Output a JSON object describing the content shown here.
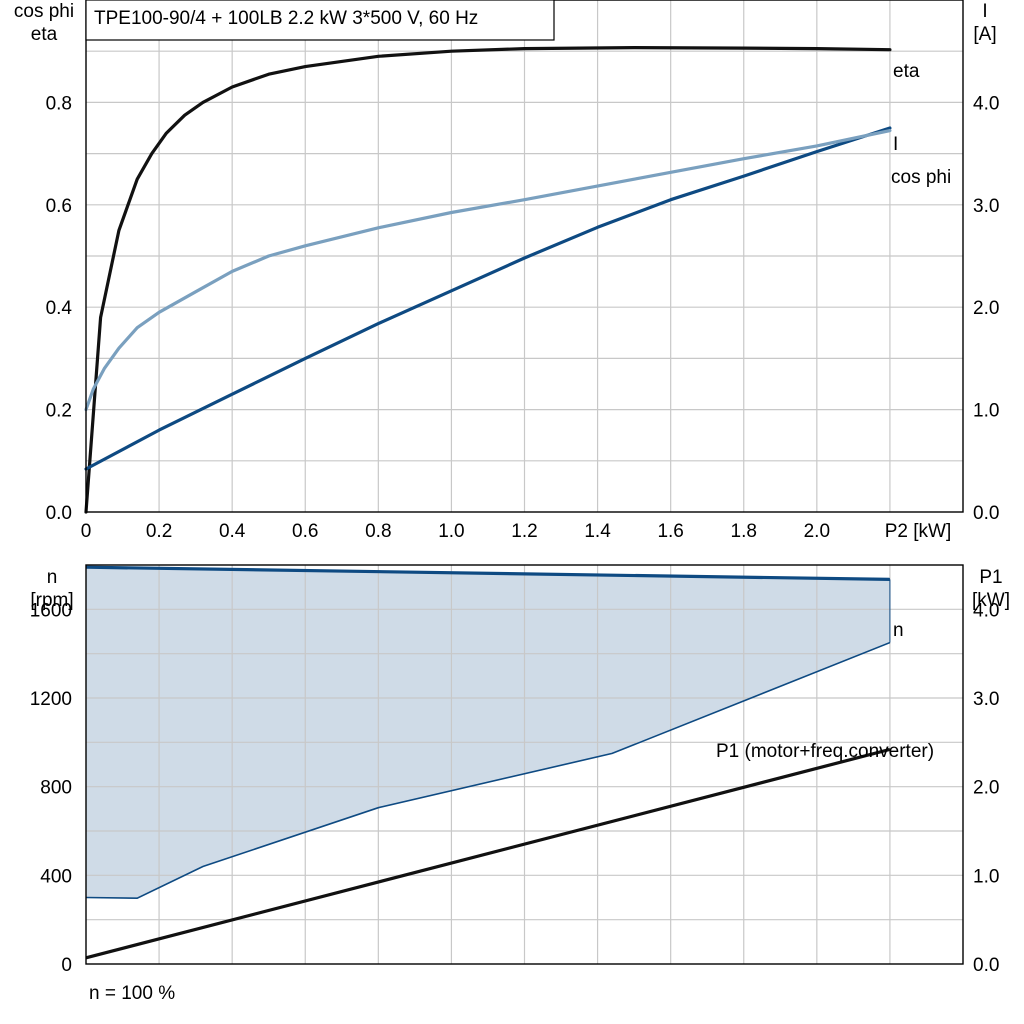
{
  "colors": {
    "eta": "#111111",
    "current": "#0e4a82",
    "cosphi": "#7aa0bf",
    "speed": "#0e4a82",
    "band_fill": "#cfdbe7",
    "band_edge": "#0e4a82",
    "p1": "#111111",
    "grid": "#c8c8c8"
  },
  "chart_data": [
    {
      "type": "line",
      "title": "TPE100-90/4 + 100LB   2.2 kW   3*500 V, 60 Hz",
      "xlabel": "P2 [kW]",
      "ylabel_left": [
        "cos phi",
        "eta"
      ],
      "ylabel_right": [
        "I",
        "[A]"
      ],
      "xlim": [
        0,
        2.4
      ],
      "ylim_left": [
        0,
        1.0
      ],
      "ylim_right": [
        0,
        5.0
      ],
      "grid": true,
      "x_ticks": [
        "0",
        "0.2",
        "0.4",
        "0.6",
        "0.8",
        "1.0",
        "1.2",
        "1.4",
        "1.6",
        "1.8",
        "2.0"
      ],
      "y_ticks_left": [
        "0.0",
        "0.2",
        "0.4",
        "0.6",
        "0.8"
      ],
      "y_ticks_right": [
        "0.0",
        "1.0",
        "2.0",
        "3.0",
        "4.0"
      ],
      "series": [
        {
          "name": "eta",
          "axis": "left",
          "x": [
            0,
            0.04,
            0.09,
            0.14,
            0.18,
            0.22,
            0.27,
            0.32,
            0.4,
            0.5,
            0.6,
            0.8,
            1.0,
            1.2,
            1.5,
            1.8,
            2.0,
            2.2
          ],
          "y": [
            0.0,
            0.38,
            0.55,
            0.65,
            0.7,
            0.74,
            0.775,
            0.8,
            0.83,
            0.855,
            0.87,
            0.89,
            0.9,
            0.905,
            0.907,
            0.906,
            0.905,
            0.903
          ]
        },
        {
          "name": "I",
          "axis": "right",
          "x": [
            0,
            0.2,
            0.4,
            0.6,
            0.8,
            1.0,
            1.2,
            1.4,
            1.6,
            1.8,
            2.0,
            2.2
          ],
          "y": [
            0.42,
            0.8,
            1.15,
            1.5,
            1.84,
            2.16,
            2.48,
            2.78,
            3.05,
            3.28,
            3.52,
            3.75
          ]
        },
        {
          "name": "cos phi",
          "axis": "left",
          "x": [
            0,
            0.02,
            0.05,
            0.09,
            0.14,
            0.2,
            0.3,
            0.4,
            0.5,
            0.6,
            0.8,
            1.0,
            1.2,
            1.5,
            1.8,
            2.0,
            2.2
          ],
          "y": [
            0.2,
            0.24,
            0.28,
            0.32,
            0.36,
            0.39,
            0.43,
            0.47,
            0.5,
            0.52,
            0.555,
            0.585,
            0.61,
            0.65,
            0.69,
            0.715,
            0.745
          ]
        }
      ]
    },
    {
      "type": "line",
      "xlim": [
        0,
        2.4
      ],
      "ylabel_left": [
        "n",
        "[rpm]"
      ],
      "ylabel_right": [
        "P1",
        "[kW]"
      ],
      "ylim_left": [
        0,
        1800
      ],
      "ylim_right": [
        0,
        4.5
      ],
      "grid": true,
      "y_ticks_left": [
        "0",
        "400",
        "800",
        "1200",
        "1600"
      ],
      "y_ticks_right": [
        "0.0",
        "1.0",
        "2.0",
        "3.0",
        "4.0"
      ],
      "footnote": "n = 100 %",
      "series": [
        {
          "name": "n",
          "axis": "left",
          "x": [
            0,
            2.2
          ],
          "y": [
            1790,
            1735
          ]
        },
        {
          "axis": "left",
          "role": "lower-edge",
          "x": [
            0,
            0.14,
            0.32,
            0.8,
            1.44,
            2.2
          ],
          "y": [
            300,
            297,
            440,
            705,
            950,
            1450
          ]
        },
        {
          "name": "P1 (motor+freq.converter)",
          "axis": "right",
          "x": [
            0,
            2.2
          ],
          "y": [
            0.07,
            2.42
          ]
        }
      ]
    }
  ]
}
